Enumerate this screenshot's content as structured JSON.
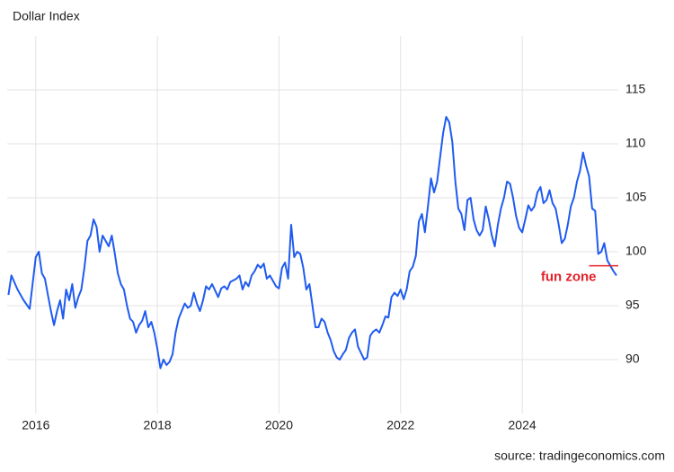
{
  "chart_data": {
    "type": "line",
    "title": "Dollar Index",
    "source": "source: tradingeconomics.com",
    "x": [
      2015.55,
      2015.6,
      2015.7,
      2015.8,
      2015.9,
      2016.0,
      2016.05,
      2016.1,
      2016.15,
      2016.2,
      2016.25,
      2016.3,
      2016.35,
      2016.4,
      2016.45,
      2016.5,
      2016.55,
      2016.6,
      2016.65,
      2016.7,
      2016.75,
      2016.8,
      2016.85,
      2016.9,
      2016.95,
      2017.0,
      2017.05,
      2017.1,
      2017.15,
      2017.2,
      2017.25,
      2017.3,
      2017.35,
      2017.4,
      2017.45,
      2017.5,
      2017.55,
      2017.6,
      2017.65,
      2017.7,
      2017.75,
      2017.8,
      2017.85,
      2017.9,
      2017.95,
      2018.0,
      2018.05,
      2018.1,
      2018.15,
      2018.2,
      2018.25,
      2018.3,
      2018.35,
      2018.4,
      2018.45,
      2018.5,
      2018.55,
      2018.6,
      2018.65,
      2018.7,
      2018.75,
      2018.8,
      2018.85,
      2018.9,
      2018.95,
      2019.0,
      2019.05,
      2019.1,
      2019.15,
      2019.2,
      2019.3,
      2019.35,
      2019.4,
      2019.45,
      2019.5,
      2019.55,
      2019.6,
      2019.65,
      2019.7,
      2019.75,
      2019.8,
      2019.85,
      2019.9,
      2019.95,
      2020.0,
      2020.05,
      2020.1,
      2020.15,
      2020.2,
      2020.25,
      2020.3,
      2020.35,
      2020.4,
      2020.45,
      2020.5,
      2020.55,
      2020.6,
      2020.65,
      2020.7,
      2020.75,
      2020.8,
      2020.85,
      2020.9,
      2020.95,
      2021.0,
      2021.05,
      2021.1,
      2021.15,
      2021.2,
      2021.25,
      2021.3,
      2021.35,
      2021.4,
      2021.45,
      2021.5,
      2021.55,
      2021.6,
      2021.65,
      2021.7,
      2021.75,
      2021.8,
      2021.85,
      2021.9,
      2021.95,
      2022.0,
      2022.05,
      2022.1,
      2022.15,
      2022.2,
      2022.25,
      2022.3,
      2022.35,
      2022.4,
      2022.45,
      2022.5,
      2022.55,
      2022.6,
      2022.65,
      2022.7,
      2022.75,
      2022.8,
      2022.85,
      2022.9,
      2022.95,
      2023.0,
      2023.05,
      2023.1,
      2023.15,
      2023.2,
      2023.25,
      2023.3,
      2023.35,
      2023.4,
      2023.45,
      2023.5,
      2023.55,
      2023.6,
      2023.65,
      2023.7,
      2023.75,
      2023.8,
      2023.85,
      2023.9,
      2023.95,
      2024.0,
      2024.05,
      2024.1,
      2024.15,
      2024.2,
      2024.25,
      2024.3,
      2024.35,
      2024.4,
      2024.45,
      2024.5,
      2024.55,
      2024.6,
      2024.65,
      2024.7,
      2024.75,
      2024.8,
      2024.85,
      2024.9,
      2024.95,
      2025.0,
      2025.05,
      2025.1,
      2025.15,
      2025.2,
      2025.25,
      2025.3,
      2025.35,
      2025.4,
      2025.45,
      2025.5,
      2025.55
    ],
    "series": [
      {
        "color": "#1f5bf0",
        "values": [
          96.0,
          97.8,
          96.5,
          95.5,
          94.7,
          99.5,
          100.0,
          98,
          97.5,
          96,
          94.5,
          93.2,
          94.5,
          95.5,
          93.8,
          96.5,
          95.5,
          97.0,
          94.8,
          95.8,
          96.5,
          98.5,
          101,
          101.5,
          103,
          102.3,
          100,
          101.5,
          101,
          100.5,
          101.5,
          99.8,
          98,
          97,
          96.5,
          95,
          93.8,
          93.5,
          92.5,
          93.2,
          93.6,
          94.5,
          93,
          93.5,
          92.5,
          91.0,
          89.2,
          90.0,
          89.5,
          89.8,
          90.5,
          92.5,
          93.8,
          94.5,
          95.2,
          94.8,
          95,
          96.2,
          95.2,
          94.5,
          95.5,
          96.8,
          96.5,
          97,
          96.4,
          95.8,
          96.6,
          96.8,
          96.5,
          97.2,
          97.5,
          97.8,
          96.5,
          97.2,
          96.8,
          97.8,
          98.2,
          98.8,
          98.5,
          98.9,
          97.5,
          97.8,
          97.3,
          96.8,
          96.6,
          98.5,
          99.0,
          97.5,
          102.5,
          99.5,
          100,
          99.8,
          98.5,
          96.5,
          97,
          95,
          93,
          93,
          93.8,
          93.5,
          92.5,
          91.8,
          90.8,
          90.2,
          90.0,
          90.5,
          90.9,
          92,
          92.5,
          92.8,
          91.2,
          90.6,
          90.0,
          90.2,
          92.2,
          92.6,
          92.8,
          92.5,
          93.2,
          94.0,
          93.9,
          95.8,
          96.2,
          95.9,
          96.5,
          95.6,
          96.5,
          98.2,
          98.6,
          99.6,
          102.8,
          103.5,
          101.8,
          104.2,
          106.8,
          105.5,
          106.5,
          108.8,
          111,
          112.5,
          112.0,
          110.2,
          106.5,
          104,
          103.5,
          102,
          104.8,
          105,
          103,
          102,
          101.5,
          102,
          104.2,
          103,
          101.5,
          100.5,
          102.5,
          104,
          105,
          106.5,
          106.3,
          105,
          103.3,
          102.2,
          101.8,
          103,
          104.3,
          103.8,
          104.2,
          105.5,
          106,
          104.5,
          104.8,
          105.7,
          104.5,
          104,
          102.5,
          100.8,
          101.2,
          102.5,
          104.2,
          105,
          106.5,
          107.5,
          109.2,
          108,
          107,
          104,
          103.8,
          99.8,
          100,
          100.8,
          99.2,
          98.7,
          98.2,
          97.8
        ]
      }
    ],
    "xlim": [
      2015.53,
      2025.58
    ],
    "ylim": [
      85,
      120
    ],
    "xticks": [
      2016,
      2018,
      2020,
      2022,
      2024
    ],
    "yticks": [
      90,
      95,
      100,
      105,
      110,
      115
    ],
    "grid": true,
    "annotation": {
      "text": "fun zone",
      "y": 98.7,
      "x": [
        2025.1,
        2025.58
      ],
      "color": "#e3202a"
    }
  }
}
